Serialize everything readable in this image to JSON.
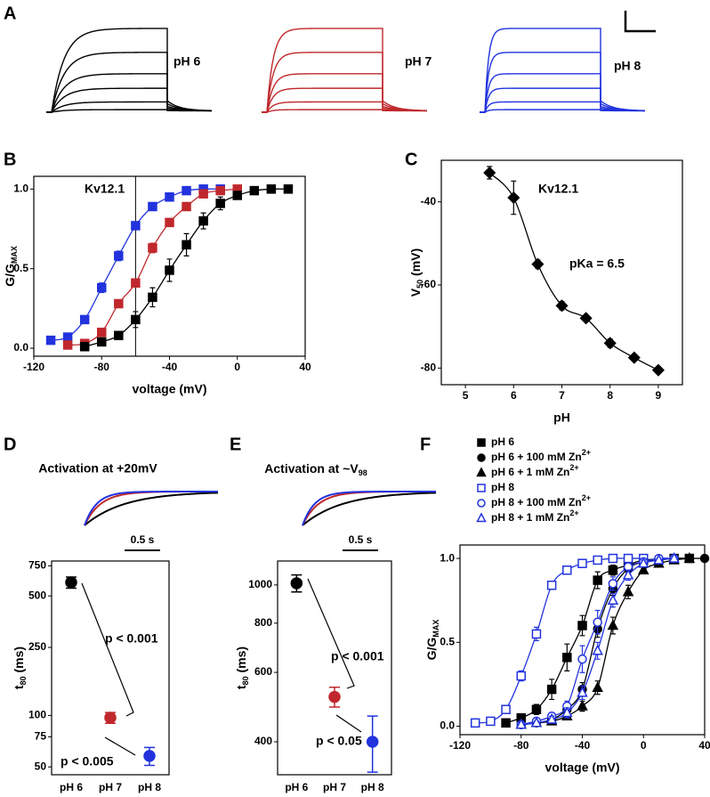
{
  "chart_data": [
    {
      "type": "traces",
      "label": "A",
      "series": [
        {
          "name": "pH 6",
          "color": "#000000"
        },
        {
          "name": "pH 7",
          "color": "#c0282d"
        },
        {
          "name": "pH 8",
          "color": "#2233dd"
        }
      ]
    },
    {
      "type": "scatter",
      "label": "B",
      "annotations": [
        "Kv12.1"
      ],
      "xlabel": "voltage (mV)",
      "ylabel": [
        "G/G",
        "MAX"
      ],
      "xlim": [
        -120,
        40
      ],
      "xticks": [
        -120,
        -80,
        -40,
        0,
        40
      ],
      "ylim": [
        -0.05,
        1.08
      ],
      "yticks": [
        {
          "value": 0,
          "label": "0.0"
        },
        0.5,
        {
          "value": 1,
          "label": "1.0"
        }
      ],
      "vline": -60,
      "curves": true,
      "series": [
        {
          "color": "#2233dd",
          "marker": "square",
          "filled": true,
          "x": [
            -110,
            -100,
            -90,
            -80,
            -70,
            -60,
            -50,
            -40,
            -30,
            -20,
            -10
          ],
          "values": [
            0.05,
            0.07,
            0.18,
            0.38,
            0.58,
            0.77,
            0.89,
            0.95,
            0.99,
            1.0,
            1.0
          ],
          "errors": [
            0.01,
            0.01,
            0.02,
            0.03,
            0.03,
            0.02,
            0.02,
            0.01,
            0.01,
            0.01,
            0.01
          ]
        },
        {
          "color": "#c0282d",
          "marker": "square",
          "filled": true,
          "x": [
            -100,
            -90,
            -80,
            -70,
            -60,
            -50,
            -40,
            -30,
            -20,
            -10,
            0
          ],
          "values": [
            0.02,
            0.03,
            0.1,
            0.28,
            0.41,
            0.63,
            0.79,
            0.89,
            0.97,
            0.99,
            1.0
          ],
          "errors": [
            0.01,
            0.01,
            0.01,
            0.02,
            0.02,
            0.03,
            0.02,
            0.02,
            0.01,
            0.01,
            0.01
          ]
        },
        {
          "color": "#000000",
          "marker": "square",
          "filled": true,
          "x": [
            -90,
            -80,
            -70,
            -60,
            -50,
            -40,
            -30,
            -20,
            -10,
            0,
            10,
            20,
            30
          ],
          "values": [
            0.01,
            0.04,
            0.08,
            0.18,
            0.32,
            0.49,
            0.65,
            0.8,
            0.91,
            0.96,
            0.99,
            1.0,
            1.0
          ],
          "errors": [
            0.01,
            0.01,
            0.02,
            0.05,
            0.06,
            0.07,
            0.07,
            0.05,
            0.04,
            0.02,
            0.01,
            0.01,
            0.01
          ]
        }
      ]
    },
    {
      "type": "scatter",
      "label": "C",
      "annotations": [
        "Kv12.1",
        "pKa = 6.5"
      ],
      "xlabel": "pH",
      "ylabel": [
        "V",
        "50",
        " (mV)"
      ],
      "xlim": [
        4.5,
        9.5
      ],
      "xticks": [
        5,
        6,
        7,
        8,
        9
      ],
      "ylim": [
        -84,
        -30
      ],
      "yticks": [
        -80,
        -60,
        -40
      ],
      "curves": true,
      "series": [
        {
          "color": "#000000",
          "marker": "diamond",
          "filled": true,
          "x": [
            5.5,
            6,
            6.5,
            7,
            7.5,
            8,
            8.5,
            9
          ],
          "values": [
            -33,
            -39,
            -55,
            -65,
            -68,
            -74,
            -77.5,
            -80.5
          ],
          "errors": [
            1.5,
            4,
            1,
            1,
            0.5,
            1,
            0.5,
            0.5
          ]
        }
      ]
    },
    {
      "type": "dot",
      "label": "D",
      "title": "Activation at +20mV",
      "scalebar": "0.5 s",
      "categories": [
        "pH 6",
        "pH 7",
        "pH 8"
      ],
      "values": [
        600,
        97,
        58
      ],
      "errors": [
        45,
        7,
        7
      ],
      "colors": [
        "#000000",
        "#c0282d",
        "#2233dd"
      ],
      "ylabel": [
        "t",
        "80",
        " (ms)"
      ],
      "yscale": "log",
      "ylim": [
        45,
        800
      ],
      "yticks": [
        50,
        75,
        100,
        250,
        500,
        750
      ],
      "annotations": [
        "p < 0.001",
        "p < 0.005"
      ]
    },
    {
      "type": "dot",
      "label": "E",
      "title": [
        "Activation at ~V",
        "98"
      ],
      "scalebar": "0.5 s",
      "categories": [
        "pH 6",
        "pH 7",
        "pH 8"
      ],
      "values": [
        1010,
        520,
        400
      ],
      "errors": [
        50,
        30,
        65
      ],
      "colors": [
        "#000000",
        "#c0282d",
        "#2233dd"
      ],
      "ylabel": [
        "t",
        "80",
        " (ms)"
      ],
      "yscale": "log",
      "ylim": [
        330,
        1150
      ],
      "yticks": [
        400,
        600,
        800,
        1000
      ],
      "annotations": [
        "p < 0.001",
        "p < 0.05"
      ]
    },
    {
      "type": "scatter",
      "label": "F",
      "xlabel": "voltage (mV)",
      "ylabel": [
        "G/G",
        "MAX"
      ],
      "xlim": [
        -120,
        40
      ],
      "xticks": [
        -120,
        -80,
        -40,
        0,
        40
      ],
      "ylim": [
        -0.05,
        1.08
      ],
      "yticks": [
        {
          "value": 0,
          "label": "0.0"
        },
        0.5,
        {
          "value": 1,
          "label": "1.0"
        }
      ],
      "curves": true,
      "series": [
        {
          "name": "pH 6",
          "color": "#000000",
          "marker": "square",
          "filled": true,
          "x": [
            -90,
            -80,
            -70,
            -60,
            -50,
            -40,
            -30,
            -20,
            -10,
            0,
            20,
            30
          ],
          "values": [
            0.02,
            0.05,
            0.1,
            0.22,
            0.41,
            0.6,
            0.87,
            0.93,
            0.96,
            0.99,
            1.0,
            1.0
          ],
          "errors": [
            0.01,
            0.01,
            0.03,
            0.06,
            0.08,
            0.06,
            0.05,
            0.03,
            0.02,
            0.01,
            0.01,
            0.01
          ]
        },
        {
          "name": [
            "pH 6 + 100 mM Zn",
            "2+"
          ],
          "color": "#000000",
          "marker": "circle",
          "filled": true,
          "x": [
            -80,
            -70,
            -60,
            -50,
            -40,
            -30,
            -20,
            -10,
            0,
            10,
            20,
            30,
            40
          ],
          "values": [
            0.01,
            0.02,
            0.04,
            0.1,
            0.22,
            0.58,
            0.82,
            0.94,
            0.98,
            0.99,
            1.0,
            1.0,
            1.0
          ],
          "errors": [
            0.01,
            0.01,
            0.02,
            0.03,
            0.04,
            0.05,
            0.04,
            0.03,
            0.02,
            0.01,
            0.01,
            0.01,
            0.01
          ]
        },
        {
          "name": [
            "pH 6 + 1 mM Zn",
            "2+"
          ],
          "color": "#000000",
          "marker": "triangle",
          "filled": true,
          "x": [
            -80,
            -70,
            -60,
            -50,
            -40,
            -30,
            -20,
            -10,
            0,
            10,
            20,
            30
          ],
          "values": [
            0.01,
            0.02,
            0.03,
            0.06,
            0.12,
            0.23,
            0.6,
            0.8,
            0.93,
            0.97,
            0.99,
            1.0
          ],
          "errors": [
            0.01,
            0.01,
            0.02,
            0.02,
            0.03,
            0.04,
            0.05,
            0.04,
            0.02,
            0.01,
            0.01,
            0.01
          ]
        },
        {
          "name": "pH 8",
          "color": "#2233dd",
          "marker": "square",
          "filled": false,
          "x": [
            -110,
            -100,
            -90,
            -80,
            -70,
            -60,
            -50,
            -40,
            -30,
            -20,
            -10,
            0
          ],
          "values": [
            0.02,
            0.03,
            0.1,
            0.3,
            0.55,
            0.84,
            0.93,
            0.97,
            0.99,
            1.0,
            1.0,
            1.0
          ],
          "errors": [
            0.01,
            0.01,
            0.02,
            0.03,
            0.04,
            0.02,
            0.02,
            0.01,
            0.01,
            0.01,
            0.01,
            0.01
          ]
        },
        {
          "name": [
            "pH 8 + 100 mM Zn",
            "2+"
          ],
          "color": "#2233dd",
          "marker": "circle",
          "filled": false,
          "x": [
            -80,
            -70,
            -60,
            -50,
            -40,
            -30,
            -20,
            -10,
            0,
            10,
            20
          ],
          "values": [
            0.01,
            0.03,
            0.06,
            0.12,
            0.4,
            0.62,
            0.85,
            0.95,
            0.98,
            1.0,
            1.0
          ],
          "errors": [
            0.01,
            0.01,
            0.02,
            0.03,
            0.08,
            0.07,
            0.04,
            0.02,
            0.01,
            0.01,
            0.01
          ]
        },
        {
          "name": [
            "pH 8 + 1 mM Zn",
            "2+"
          ],
          "color": "#2233dd",
          "marker": "triangle",
          "filled": false,
          "x": [
            -80,
            -70,
            -60,
            -50,
            -40,
            -30,
            -20,
            -10,
            0,
            10,
            20
          ],
          "values": [
            0.01,
            0.02,
            0.04,
            0.08,
            0.2,
            0.45,
            0.75,
            0.9,
            0.97,
            0.99,
            1.0
          ],
          "errors": [
            0.01,
            0.01,
            0.02,
            0.03,
            0.04,
            0.05,
            0.04,
            0.03,
            0.02,
            0.01,
            0.01
          ]
        }
      ]
    }
  ]
}
